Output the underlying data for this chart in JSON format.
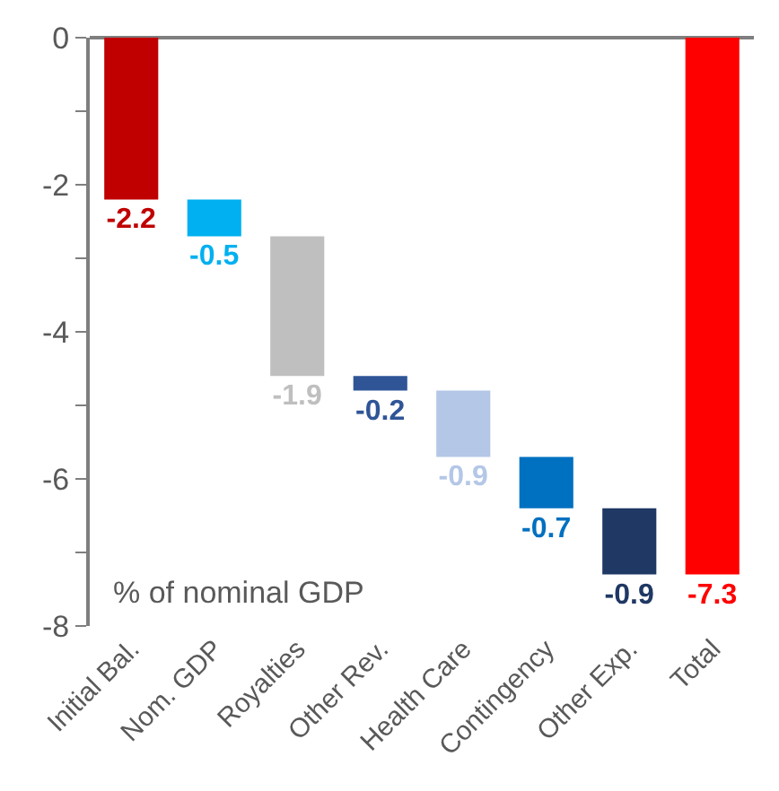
{
  "chart_data": {
    "type": "bar",
    "categories": [
      "Initial Bal.",
      "Nom. GDP",
      "Royalties",
      "Other Rev.",
      "Health Care",
      "Contingency",
      "Other Exp.",
      "Total"
    ],
    "values": [
      -2.2,
      -0.5,
      -1.9,
      -0.2,
      -0.9,
      -0.7,
      -0.9,
      -7.3
    ],
    "base": [
      0,
      -2.2,
      -2.7,
      -4.6,
      -4.8,
      -5.7,
      -6.4,
      0
    ],
    "colors": [
      "#c00000",
      "#00b0f0",
      "#bfbfbf",
      "#2f5597",
      "#b4c7e7",
      "#0070c0",
      "#1f3864",
      "#ff0000"
    ],
    "data_labels": true,
    "ylim": [
      -8,
      0
    ],
    "yticks": [
      0,
      {
        "value": -1,
        "label": null
      },
      -2,
      {
        "value": -3,
        "label": null
      },
      -4,
      {
        "value": -5,
        "label": null
      },
      -6,
      {
        "value": -7,
        "label": null
      },
      -8
    ],
    "annotations": [
      "% of nominal GDP"
    ]
  }
}
